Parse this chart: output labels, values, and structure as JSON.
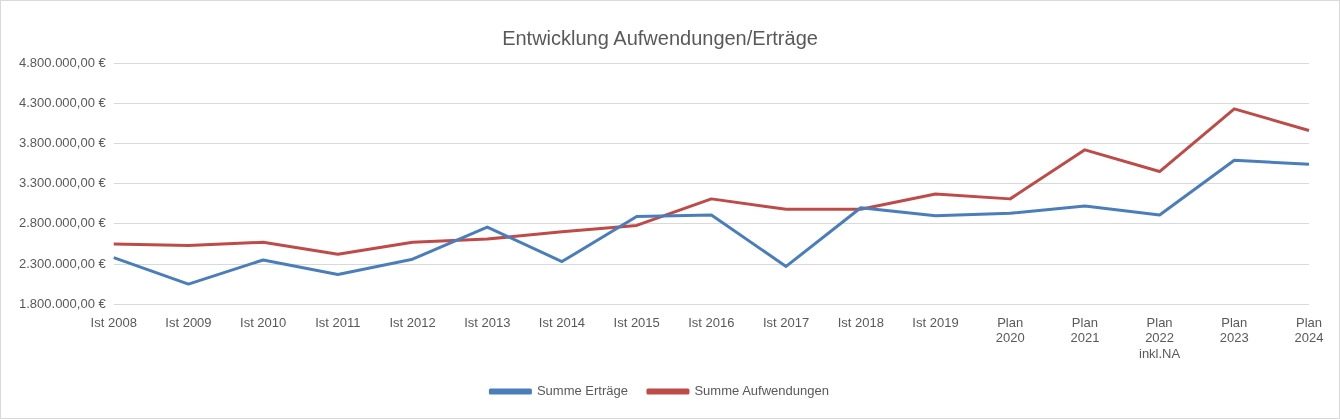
{
  "chart_data": {
    "type": "line",
    "title": "Entwicklung Aufwendungen/Erträge",
    "categories": [
      "Ist 2008",
      "Ist 2009",
      "Ist 2010",
      "Ist 2011",
      "Ist 2012",
      "Ist 2013",
      "Ist 2014",
      "Ist 2015",
      "Ist 2016",
      "Ist 2017",
      "Ist 2018",
      "Ist 2019",
      "Plan 2020",
      "Plan 2021",
      "Plan 2022 inkl.NA",
      "Plan 2023",
      "Plan 2024"
    ],
    "series": [
      {
        "name": "Summe Erträge",
        "color": "#4a7ebb",
        "values": [
          2380000,
          2050000,
          2350000,
          2170000,
          2360000,
          2760000,
          2330000,
          2890000,
          2910000,
          2270000,
          3000000,
          2900000,
          2930000,
          3020000,
          2910000,
          3590000,
          3540000
        ]
      },
      {
        "name": "Summe Aufwendungen",
        "color": "#be4b48",
        "values": [
          2550000,
          2530000,
          2570000,
          2420000,
          2570000,
          2610000,
          2700000,
          2780000,
          3110000,
          2980000,
          2980000,
          3170000,
          3110000,
          3720000,
          3450000,
          4230000,
          3960000
        ]
      }
    ],
    "ylim": [
      1800000,
      4800000
    ],
    "yticks": [
      {
        "value": 1800000,
        "label": "1.800.000,00 €"
      },
      {
        "value": 2300000,
        "label": "2.300.000,00 €"
      },
      {
        "value": 2800000,
        "label": "2.800.000,00 €"
      },
      {
        "value": 3300000,
        "label": "3.300.000,00 €"
      },
      {
        "value": 3800000,
        "label": "3.800.000,00 €"
      },
      {
        "value": 4300000,
        "label": "4.300.000,00 €"
      },
      {
        "value": 4800000,
        "label": "4.800.000,00 €"
      }
    ],
    "grid": "y",
    "legend": "bottom",
    "marker": "none",
    "line_style": "solid"
  }
}
